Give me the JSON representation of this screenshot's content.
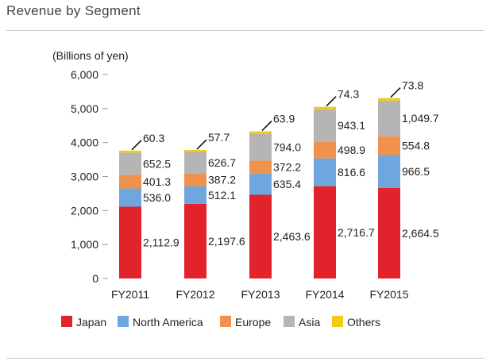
{
  "page_title": "Revenue by Segment",
  "chart_data": {
    "type": "bar",
    "stacked": true,
    "title": "Revenue by Segment",
    "unit_label": "(Billions of yen)",
    "categories": [
      "FY2011",
      "FY2012",
      "FY2013",
      "FY2014",
      "FY2015"
    ],
    "series": [
      {
        "name": "Japan",
        "color": "#e3232b",
        "values": [
          2112.9,
          2197.6,
          2463.6,
          2716.7,
          2664.5
        ],
        "labels": [
          "2,112.9",
          "2,197.6",
          "2,463.6",
          "2,716.7",
          "2,664.5"
        ]
      },
      {
        "name": "North America",
        "color": "#6ea6de",
        "values": [
          536.0,
          512.1,
          635.4,
          816.6,
          966.5
        ],
        "labels": [
          "536.0",
          "512.1",
          "635.4",
          "816.6",
          "966.5"
        ]
      },
      {
        "name": "Europe",
        "color": "#f0924c",
        "values": [
          401.3,
          387.2,
          372.2,
          498.9,
          554.8
        ],
        "labels": [
          "401.3",
          "387.2",
          "372.2",
          "498.9",
          "554.8"
        ]
      },
      {
        "name": "Asia",
        "color": "#b5b5b5",
        "values": [
          652.5,
          626.7,
          794.0,
          943.1,
          1049.7
        ],
        "labels": [
          "652.5",
          "626.7",
          "794.0",
          "943.1",
          "1,049.7"
        ]
      },
      {
        "name": "Others",
        "color": "#f3cb15",
        "values": [
          60.3,
          57.7,
          63.9,
          74.3,
          73.8
        ],
        "labels": [
          "60.3",
          "57.7",
          "63.9",
          "74.3",
          "73.8"
        ]
      }
    ],
    "y_ticks": [
      0,
      1000,
      2000,
      3000,
      4000,
      5000,
      6000
    ],
    "y_tick_labels": [
      "0",
      "1,000",
      "2,000",
      "3,000",
      "4,000",
      "5,000",
      "6,000"
    ],
    "ylim": [
      0,
      6000
    ],
    "grid": false,
    "legend_position": "bottom"
  }
}
